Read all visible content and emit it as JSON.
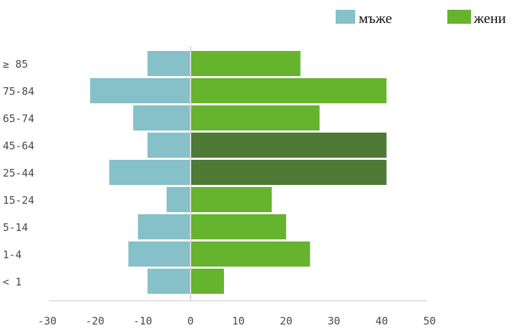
{
  "chart_data": {
    "type": "bar",
    "orientation": "horizontal",
    "stacking": "diverging",
    "categories": [
      "≥ 85",
      "75-84",
      "65-74",
      "45-64",
      "25-44",
      "15-24",
      "5-14",
      "1-4",
      "< 1"
    ],
    "series": [
      {
        "name": "мъже",
        "values": [
          -9,
          -21,
          -12,
          -9,
          -17,
          -5,
          -11,
          -13,
          -9
        ],
        "color": "#86c0c8"
      },
      {
        "name": "жени",
        "values": [
          23,
          41,
          27,
          41,
          41,
          17,
          20,
          25,
          7
        ],
        "color": "#66b32e",
        "highlight_color": "#4f7a35",
        "highlighted_categories": [
          "45-64",
          "25-44"
        ]
      }
    ],
    "x_ticks": [
      "-30",
      "-20",
      "-10",
      "0",
      "10",
      "20",
      "30",
      "40",
      "50"
    ],
    "xlim": [
      -30,
      50
    ],
    "grid": false,
    "legend_position": "top-right"
  }
}
